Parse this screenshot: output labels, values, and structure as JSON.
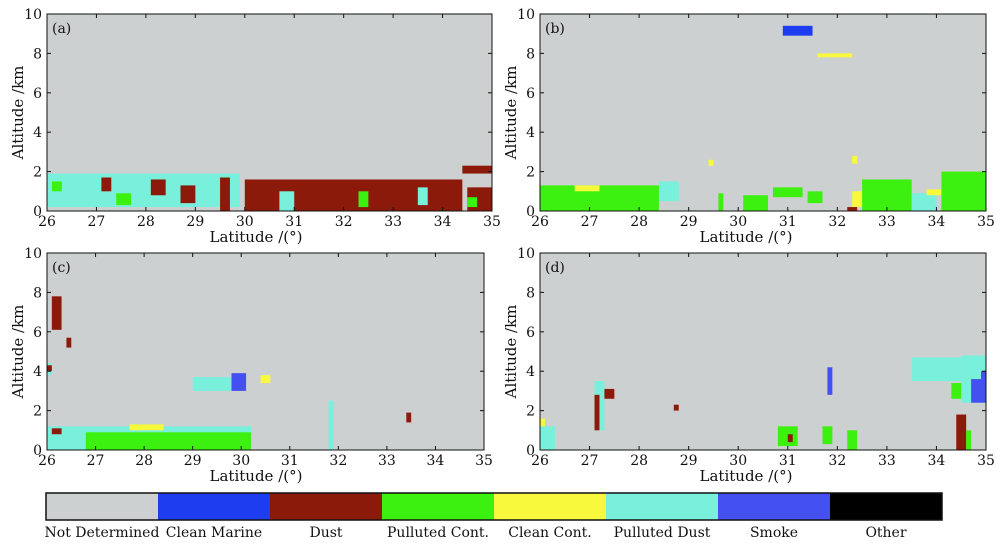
{
  "chart_data": {
    "type": "heatmap",
    "legend": {
      "categories": [
        {
          "name": "Not Determined",
          "color": "#cdd0d0"
        },
        {
          "name": "Clean Marine",
          "color": "#1e3cf0"
        },
        {
          "name": "Dust",
          "color": "#8c1a0a"
        },
        {
          "name": "Pulluted Cont.",
          "color": "#3cf010"
        },
        {
          "name": "Clean Cont.",
          "color": "#f8f83c"
        },
        {
          "name": "Pulluted Dust",
          "color": "#78f0dc"
        },
        {
          "name": "Smoke",
          "color": "#4450f0"
        },
        {
          "name": "Other",
          "color": "#000000"
        }
      ]
    },
    "panels": [
      {
        "label": "(a)",
        "xlabel": "Latitude /(°)",
        "ylabel": "Altitude /km",
        "xlim": [
          26,
          35
        ],
        "ylim": [
          0,
          10
        ],
        "xticks": [
          "26",
          "27",
          "28",
          "29",
          "30",
          "31",
          "32",
          "33",
          "34",
          "35"
        ],
        "yticks": [
          "0",
          "2",
          "4",
          "6",
          "8",
          "10"
        ],
        "regions": [
          {
            "cat": "Pulluted Dust",
            "x0": 26.0,
            "x1": 29.9,
            "y0": 0.2,
            "y1": 1.9
          },
          {
            "cat": "Pulluted Cont.",
            "x0": 26.1,
            "x1": 26.3,
            "y0": 1.0,
            "y1": 1.5
          },
          {
            "cat": "Pulluted Cont.",
            "x0": 27.4,
            "x1": 27.7,
            "y0": 0.3,
            "y1": 0.9
          },
          {
            "cat": "Dust",
            "x0": 27.1,
            "x1": 27.3,
            "y0": 1.0,
            "y1": 1.7
          },
          {
            "cat": "Dust",
            "x0": 28.1,
            "x1": 28.4,
            "y0": 0.8,
            "y1": 1.6
          },
          {
            "cat": "Dust",
            "x0": 28.7,
            "x1": 29.0,
            "y0": 0.4,
            "y1": 1.3
          },
          {
            "cat": "Dust",
            "x0": 29.5,
            "x1": 29.7,
            "y0": 0.0,
            "y1": 1.7
          },
          {
            "cat": "Dust",
            "x0": 30.0,
            "x1": 34.4,
            "y0": 0.0,
            "y1": 1.6
          },
          {
            "cat": "Pulluted Dust",
            "x0": 30.7,
            "x1": 31.0,
            "y0": 0.0,
            "y1": 1.0
          },
          {
            "cat": "Pulluted Cont.",
            "x0": 32.3,
            "x1": 32.5,
            "y0": 0.2,
            "y1": 1.0
          },
          {
            "cat": "Pulluted Dust",
            "x0": 33.5,
            "x1": 33.7,
            "y0": 0.3,
            "y1": 1.2
          },
          {
            "cat": "Dust",
            "x0": 34.5,
            "x1": 35.0,
            "y0": 0.0,
            "y1": 1.2
          },
          {
            "cat": "Dust",
            "x0": 34.4,
            "x1": 35.0,
            "y0": 1.9,
            "y1": 2.3
          },
          {
            "cat": "Pulluted Cont.",
            "x0": 34.5,
            "x1": 34.7,
            "y0": 0.2,
            "y1": 0.7
          }
        ]
      },
      {
        "label": "(b)",
        "xlabel": "Latitude /(°)",
        "ylabel": "Altitude /km",
        "xlim": [
          26,
          35
        ],
        "ylim": [
          0,
          10
        ],
        "xticks": [
          "26",
          "27",
          "28",
          "29",
          "30",
          "31",
          "32",
          "33",
          "34",
          "35"
        ],
        "yticks": [
          "0",
          "2",
          "4",
          "6",
          "8",
          "10"
        ],
        "regions": [
          {
            "cat": "Clean Marine",
            "x0": 30.9,
            "x1": 31.5,
            "y0": 8.9,
            "y1": 9.4
          },
          {
            "cat": "Clean Cont.",
            "x0": 31.6,
            "x1": 32.3,
            "y0": 7.8,
            "y1": 8.0
          },
          {
            "cat": "Clean Cont.",
            "x0": 32.3,
            "x1": 32.4,
            "y0": 2.4,
            "y1": 2.8
          },
          {
            "cat": "Clean Cont.",
            "x0": 29.4,
            "x1": 29.5,
            "y0": 2.3,
            "y1": 2.6
          },
          {
            "cat": "Pulluted Cont.",
            "x0": 26.0,
            "x1": 28.4,
            "y0": 0.0,
            "y1": 1.3
          },
          {
            "cat": "Clean Cont.",
            "x0": 26.7,
            "x1": 27.2,
            "y0": 1.0,
            "y1": 1.3
          },
          {
            "cat": "Pulluted Dust",
            "x0": 28.4,
            "x1": 28.8,
            "y0": 0.5,
            "y1": 1.5
          },
          {
            "cat": "Pulluted Cont.",
            "x0": 29.6,
            "x1": 29.7,
            "y0": 0.0,
            "y1": 0.9
          },
          {
            "cat": "Pulluted Cont.",
            "x0": 30.1,
            "x1": 30.6,
            "y0": 0.0,
            "y1": 0.8
          },
          {
            "cat": "Pulluted Cont.",
            "x0": 30.7,
            "x1": 31.3,
            "y0": 0.7,
            "y1": 1.2
          },
          {
            "cat": "Pulluted Cont.",
            "x0": 31.4,
            "x1": 31.7,
            "y0": 0.4,
            "y1": 1.0
          },
          {
            "cat": "Clean Cont.",
            "x0": 32.3,
            "x1": 32.6,
            "y0": 0.2,
            "y1": 1.0
          },
          {
            "cat": "Dust",
            "x0": 32.2,
            "x1": 32.4,
            "y0": 0.0,
            "y1": 0.2
          },
          {
            "cat": "Pulluted Cont.",
            "x0": 32.5,
            "x1": 33.5,
            "y0": 0.0,
            "y1": 1.6
          },
          {
            "cat": "Pulluted Dust",
            "x0": 33.5,
            "x1": 34.0,
            "y0": 0.0,
            "y1": 0.9
          },
          {
            "cat": "Clean Cont.",
            "x0": 33.8,
            "x1": 34.2,
            "y0": 0.8,
            "y1": 1.1
          },
          {
            "cat": "Pulluted Cont.",
            "x0": 34.1,
            "x1": 35.0,
            "y0": 0.0,
            "y1": 2.0
          }
        ]
      },
      {
        "label": "(c)",
        "xlabel": "Latitude /(°)",
        "ylabel": "Altitude /km",
        "xlim": [
          26,
          35
        ],
        "ylim": [
          0,
          10
        ],
        "xticks": [
          "26",
          "27",
          "28",
          "29",
          "30",
          "31",
          "32",
          "33",
          "34",
          "35"
        ],
        "yticks": [
          "0",
          "2",
          "4",
          "6",
          "8",
          "10"
        ],
        "regions": [
          {
            "cat": "Dust",
            "x0": 26.1,
            "x1": 26.3,
            "y0": 6.1,
            "y1": 7.8
          },
          {
            "cat": "Dust",
            "x0": 26.4,
            "x1": 26.5,
            "y0": 5.2,
            "y1": 5.7
          },
          {
            "cat": "Pulluted Dust",
            "x0": 26.0,
            "x1": 26.1,
            "y0": 3.8,
            "y1": 4.4
          },
          {
            "cat": "Dust",
            "x0": 26.0,
            "x1": 26.1,
            "y0": 4.0,
            "y1": 4.3
          },
          {
            "cat": "Pulluted Dust",
            "x0": 26.0,
            "x1": 30.2,
            "y0": 0.0,
            "y1": 1.2
          },
          {
            "cat": "Pulluted Cont.",
            "x0": 26.8,
            "x1": 30.2,
            "y0": 0.0,
            "y1": 0.9
          },
          {
            "cat": "Dust",
            "x0": 26.1,
            "x1": 26.3,
            "y0": 0.8,
            "y1": 1.1
          },
          {
            "cat": "Clean Cont.",
            "x0": 27.7,
            "x1": 28.4,
            "y0": 1.0,
            "y1": 1.3
          },
          {
            "cat": "Pulluted Dust",
            "x0": 29.0,
            "x1": 29.8,
            "y0": 3.0,
            "y1": 3.7
          },
          {
            "cat": "Smoke",
            "x0": 29.8,
            "x1": 30.1,
            "y0": 3.0,
            "y1": 3.9
          },
          {
            "cat": "Clean Cont.",
            "x0": 30.4,
            "x1": 30.6,
            "y0": 3.4,
            "y1": 3.8
          },
          {
            "cat": "Pulluted Dust",
            "x0": 31.8,
            "x1": 31.9,
            "y0": 0.0,
            "y1": 2.5
          },
          {
            "cat": "Dust",
            "x0": 33.4,
            "x1": 33.5,
            "y0": 1.4,
            "y1": 1.9
          }
        ]
      },
      {
        "label": "(d)",
        "xlabel": "Latitude /(°)",
        "ylabel": "Altitude /km",
        "xlim": [
          26,
          35
        ],
        "ylim": [
          0,
          10
        ],
        "xticks": [
          "26",
          "27",
          "28",
          "29",
          "30",
          "31",
          "32",
          "33",
          "34",
          "35"
        ],
        "yticks": [
          "0",
          "2",
          "4",
          "6",
          "8",
          "10"
        ],
        "regions": [
          {
            "cat": "Pulluted Dust",
            "x0": 26.0,
            "x1": 26.3,
            "y0": 0.0,
            "y1": 1.2
          },
          {
            "cat": "Clean Cont.",
            "x0": 26.0,
            "x1": 26.1,
            "y0": 1.2,
            "y1": 1.6
          },
          {
            "cat": "Pulluted Dust",
            "x0": 27.1,
            "x1": 27.3,
            "y0": 1.0,
            "y1": 3.5
          },
          {
            "cat": "Dust",
            "x0": 27.3,
            "x1": 27.5,
            "y0": 2.6,
            "y1": 3.1
          },
          {
            "cat": "Dust",
            "x0": 27.1,
            "x1": 27.2,
            "y0": 1.0,
            "y1": 2.8
          },
          {
            "cat": "Dust",
            "x0": 28.7,
            "x1": 28.8,
            "y0": 2.0,
            "y1": 2.3
          },
          {
            "cat": "Pulluted Cont.",
            "x0": 30.8,
            "x1": 31.2,
            "y0": 0.2,
            "y1": 1.2
          },
          {
            "cat": "Dust",
            "x0": 31.0,
            "x1": 31.1,
            "y0": 0.4,
            "y1": 0.8
          },
          {
            "cat": "Smoke",
            "x0": 31.8,
            "x1": 31.9,
            "y0": 2.8,
            "y1": 4.2
          },
          {
            "cat": "Pulluted Cont.",
            "x0": 31.7,
            "x1": 31.9,
            "y0": 0.3,
            "y1": 1.2
          },
          {
            "cat": "Pulluted Cont.",
            "x0": 32.2,
            "x1": 32.4,
            "y0": 0.0,
            "y1": 1.0
          },
          {
            "cat": "Pulluted Dust",
            "x0": 33.5,
            "x1": 34.5,
            "y0": 3.5,
            "y1": 4.7
          },
          {
            "cat": "Pulluted Dust",
            "x0": 34.5,
            "x1": 35.0,
            "y0": 2.4,
            "y1": 4.8
          },
          {
            "cat": "Smoke",
            "x0": 34.7,
            "x1": 35.0,
            "y0": 2.4,
            "y1": 3.6
          },
          {
            "cat": "Smoke",
            "x0": 34.9,
            "x1": 35.0,
            "y0": 3.6,
            "y1": 4.0
          },
          {
            "cat": "Pulluted Cont.",
            "x0": 34.3,
            "x1": 34.5,
            "y0": 2.6,
            "y1": 3.4
          },
          {
            "cat": "Dust",
            "x0": 34.4,
            "x1": 34.6,
            "y0": 0.0,
            "y1": 1.8
          },
          {
            "cat": "Pulluted Cont.",
            "x0": 34.6,
            "x1": 34.7,
            "y0": 0.0,
            "y1": 1.0
          }
        ]
      }
    ]
  }
}
